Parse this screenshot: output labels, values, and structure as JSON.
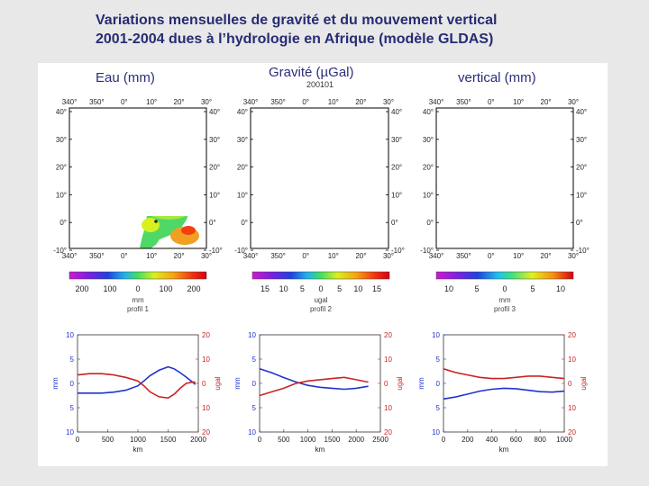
{
  "title_line1": "Variations mensuelles de gravité et du mouvement vertical",
  "title_line2": "2001-2004 dues à l’hydrologie en Afrique (modèle GLDAS)",
  "date": "200101",
  "maps": [
    {
      "label": "Eau (mm)",
      "colorbar_ticks": [
        "200",
        "100",
        "0",
        "100",
        "200"
      ],
      "unit": "mm",
      "profile": "profil 1",
      "palette": "water"
    },
    {
      "label": "Gravité (µGal)",
      "colorbar_ticks": [
        "15",
        "10",
        "5",
        "0",
        "5",
        "10",
        "15"
      ],
      "unit": "ugal",
      "profile": "profil 2",
      "palette": "water"
    },
    {
      "label": "vertical (mm)",
      "colorbar_ticks": [
        "10",
        "5",
        "0",
        "5",
        "10"
      ],
      "unit": "mm",
      "profile": "profil 3",
      "palette": "vertical"
    }
  ],
  "map_axes": {
    "lon_ticks": [
      "340°",
      "350°",
      "0°",
      "10°",
      "20°",
      "30°"
    ],
    "lat_ticks": [
      "40°",
      "30°",
      "20°",
      "10°",
      "0°",
      "-10°"
    ]
  },
  "chart_data": [
    {
      "type": "line",
      "xlabel": "km",
      "left_label": "mm",
      "right_label": "ugal",
      "x_ticks": [
        "0",
        "500",
        "1000",
        "1500",
        "2000"
      ],
      "xlim": [
        0,
        2000
      ],
      "left_ticks": [
        "10",
        "5",
        "0",
        "5",
        "10"
      ],
      "right_ticks": [
        "20",
        "10",
        "0",
        "10",
        "20"
      ],
      "left_ylim": [
        -10,
        10
      ],
      "right_ylim": [
        -20,
        20
      ],
      "series": [
        {
          "color": "#2233cc",
          "axis": "left",
          "x": [
            0,
            200,
            400,
            600,
            800,
            1000,
            1100,
            1200,
            1350,
            1500,
            1600,
            1700,
            1800,
            1900,
            1950
          ],
          "y": [
            -2,
            -2,
            -2,
            -1.8,
            -1.4,
            -0.5,
            0.5,
            1.6,
            2.7,
            3.4,
            3.0,
            2.2,
            1.3,
            0.3,
            -0.2
          ]
        },
        {
          "color": "#cc2222",
          "axis": "right",
          "x": [
            0,
            200,
            400,
            600,
            800,
            1000,
            1100,
            1200,
            1350,
            1500,
            1600,
            1700,
            1800,
            1900,
            1950
          ],
          "y": [
            3.5,
            4,
            4,
            3.5,
            2.5,
            1,
            -1,
            -3.5,
            -5.5,
            -6,
            -4.5,
            -2,
            0,
            0.5,
            0.5
          ]
        }
      ]
    },
    {
      "type": "line",
      "xlabel": "km",
      "left_label": "mm",
      "right_label": "ugal",
      "x_ticks": [
        "0",
        "500",
        "1000",
        "1500",
        "2000",
        "2500"
      ],
      "xlim": [
        0,
        2500
      ],
      "left_ticks": [
        "10",
        "5",
        "0",
        "5",
        "10"
      ],
      "right_ticks": [
        "20",
        "10",
        "0",
        "10",
        "20"
      ],
      "left_ylim": [
        -10,
        10
      ],
      "right_ylim": [
        -20,
        20
      ],
      "series": [
        {
          "color": "#2233cc",
          "axis": "left",
          "x": [
            0,
            250,
            500,
            750,
            1000,
            1250,
            1500,
            1750,
            2000,
            2250
          ],
          "y": [
            3.0,
            2.2,
            1.2,
            0.3,
            -0.4,
            -0.8,
            -1.0,
            -1.2,
            -1.0,
            -0.6
          ]
        },
        {
          "color": "#cc2222",
          "axis": "right",
          "x": [
            0,
            250,
            500,
            750,
            1000,
            1250,
            1500,
            1750,
            2000,
            2250
          ],
          "y": [
            -5,
            -3.5,
            -2,
            0,
            1,
            1.5,
            2,
            2.5,
            1.5,
            0.5
          ]
        }
      ]
    },
    {
      "type": "line",
      "xlabel": "km",
      "left_label": "mm",
      "right_label": "ugal",
      "x_ticks": [
        "0",
        "200",
        "400",
        "600",
        "800",
        "1000"
      ],
      "xlim": [
        0,
        1000
      ],
      "left_ticks": [
        "10",
        "5",
        "0",
        "5",
        "10"
      ],
      "right_ticks": [
        "20",
        "10",
        "0",
        "10",
        "20"
      ],
      "left_ylim": [
        -10,
        10
      ],
      "right_ylim": [
        -20,
        20
      ],
      "series": [
        {
          "color": "#2233cc",
          "axis": "left",
          "x": [
            0,
            100,
            200,
            300,
            400,
            500,
            600,
            700,
            800,
            900,
            1000
          ],
          "y": [
            -3.2,
            -2.8,
            -2.2,
            -1.6,
            -1.2,
            -1.0,
            -1.1,
            -1.4,
            -1.7,
            -1.8,
            -1.6
          ]
        },
        {
          "color": "#cc2222",
          "axis": "right",
          "x": [
            0,
            100,
            200,
            300,
            400,
            500,
            600,
            700,
            800,
            900,
            1000
          ],
          "y": [
            6,
            4.5,
            3.5,
            2.5,
            2,
            2,
            2.5,
            3,
            3,
            2.5,
            2
          ]
        }
      ]
    }
  ]
}
